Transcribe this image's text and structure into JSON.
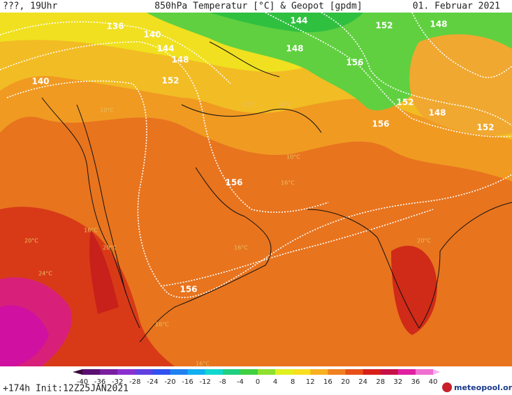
{
  "header": {
    "left": "???, 19Uhr",
    "title": "850hPa Temperatur [°C] & Geopot [gpdm]",
    "right": "01. Februar 2021"
  },
  "contour_labels": [
    "136",
    "140",
    "144",
    "148",
    "152",
    "148",
    "140",
    "144",
    "148",
    "152",
    "156",
    "152",
    "148",
    "152",
    "156",
    "156",
    "156"
  ],
  "temp_labels": [
    "10°C",
    "10°C",
    "10°C",
    "10°C",
    "16°C",
    "16°C",
    "16°C",
    "16°C",
    "16°C",
    "20°C",
    "20°C",
    "20°C",
    "24°C"
  ],
  "colorbar": {
    "ticks": [
      -40,
      -36,
      -32,
      -28,
      -24,
      -20,
      -16,
      -12,
      -8,
      -4,
      0,
      4,
      8,
      12,
      16,
      20,
      24,
      28,
      32,
      36,
      40
    ],
    "colors": [
      "#3a0a3a",
      "#5a1070",
      "#7a1ea0",
      "#8a30d0",
      "#6040e0",
      "#3050f0",
      "#2080f0",
      "#10b0f0",
      "#10d8d0",
      "#20d080",
      "#40d040",
      "#90e030",
      "#e0f020",
      "#f8e020",
      "#f8b020",
      "#f08020",
      "#e85018",
      "#d82018",
      "#c81048",
      "#e020a0",
      "#f070d0",
      "#f8b0f0"
    ]
  },
  "footer": {
    "run": "+174h  Init:12Z25JAN2021",
    "brand": "meteopool.org"
  }
}
